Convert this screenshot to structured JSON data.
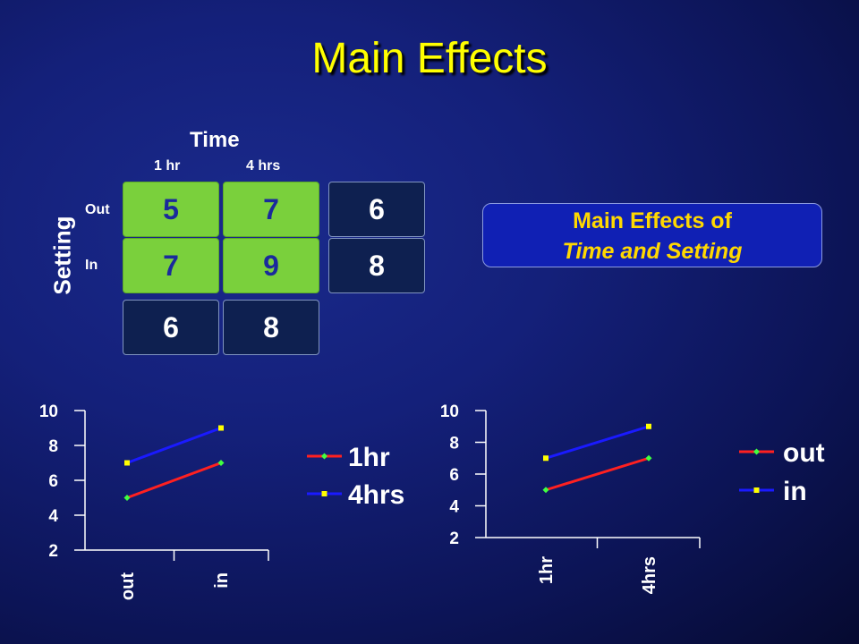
{
  "slide": {
    "title": "Main Effects"
  },
  "table": {
    "col_title": "Time",
    "row_title": "Setting",
    "col_labels": [
      "1 hr",
      "4 hrs"
    ],
    "row_labels": [
      "Out",
      "In"
    ],
    "cells": [
      [
        "5",
        "7"
      ],
      [
        "7",
        "9"
      ]
    ],
    "row_means": [
      "6",
      "8"
    ],
    "col_means": [
      "6",
      "8"
    ]
  },
  "callout": {
    "line1": "Main Effects of",
    "line2": "Time and Setting"
  },
  "colors": {
    "red_series": "#ff2020",
    "blue_series": "#1a1aff",
    "cell_green": "#7ad03c",
    "title_yellow": "#ffff00"
  },
  "chart_data": [
    {
      "type": "line",
      "categories": [
        "out",
        "in"
      ],
      "series": [
        {
          "name": "1hr",
          "values": [
            5,
            7
          ],
          "color": "#ff2020",
          "marker": "diamond",
          "marker_color": "#40ff40"
        },
        {
          "name": "4hrs",
          "values": [
            7,
            9
          ],
          "color": "#1a1aff",
          "marker": "square",
          "marker_color": "#ffff00"
        }
      ],
      "yticks": [
        "10",
        "8",
        "6",
        "4",
        "2"
      ],
      "ylim": [
        2,
        10
      ],
      "legend_position": "right"
    },
    {
      "type": "line",
      "categories": [
        "1hr",
        "4hrs"
      ],
      "series": [
        {
          "name": "out",
          "values": [
            5,
            7
          ],
          "color": "#ff2020",
          "marker": "diamond",
          "marker_color": "#40ff40"
        },
        {
          "name": "in",
          "values": [
            7,
            9
          ],
          "color": "#1a1aff",
          "marker": "square",
          "marker_color": "#ffff00"
        }
      ],
      "yticks": [
        "10",
        "8",
        "6",
        "4",
        "2"
      ],
      "ylim": [
        2,
        10
      ],
      "legend_position": "right"
    }
  ]
}
